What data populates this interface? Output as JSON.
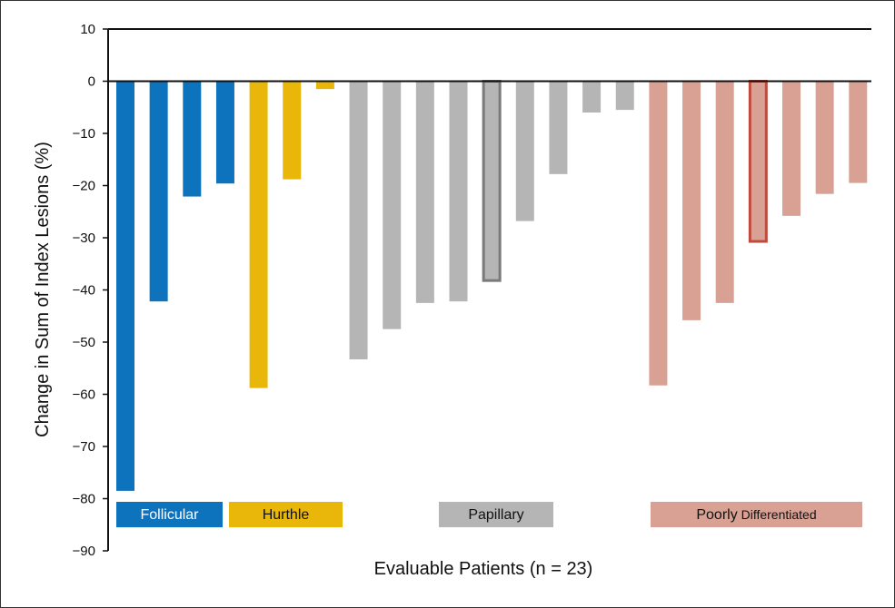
{
  "chart_data": {
    "type": "bar",
    "xlabel": "Evaluable Patients (n = 23)",
    "ylabel": "Change in Sum of Index Lesions (%)",
    "ylim": [
      -90,
      10
    ],
    "yticks": [
      10,
      0,
      -10,
      -20,
      -30,
      -40,
      -50,
      -60,
      -70,
      -80,
      -90
    ],
    "ytick_labels": [
      "10",
      "0",
      "−10",
      "−20",
      "−30",
      "−40",
      "−50",
      "−60",
      "−70",
      "−80",
      "−90"
    ],
    "grid": false,
    "legend_position": "bottom",
    "groups": [
      {
        "label": "Follicular",
        "color": "#0e73bd",
        "text_color": "#ffffff",
        "values": [
          -78.5,
          -42.2,
          -22.1,
          -19.6
        ]
      },
      {
        "label": "Hurthle",
        "color": "#e8b70a",
        "text_color": "#111111",
        "values": [
          -58.8,
          -18.8,
          -1.5
        ]
      },
      {
        "label": "Papillary",
        "color": "#b5b5b5",
        "text_color": "#111111",
        "values": [
          -53.3,
          -47.5,
          -42.5,
          -42.2,
          -38.2,
          -26.8,
          -17.8,
          -6.0,
          -5.5
        ]
      },
      {
        "label": "Poorly",
        "label_suffix": "Differentiated",
        "color": "#d9a194",
        "text_color": "#111111",
        "values": [
          -58.3,
          -45.8,
          -42.5,
          -30.7,
          -25.8,
          -21.6,
          -19.5
        ]
      }
    ],
    "highlighted_bars": [
      {
        "group": 2,
        "index": 4,
        "outline": "#7a7a7a"
      },
      {
        "group": 3,
        "index": 3,
        "outline": "#bf4b3f"
      }
    ]
  }
}
